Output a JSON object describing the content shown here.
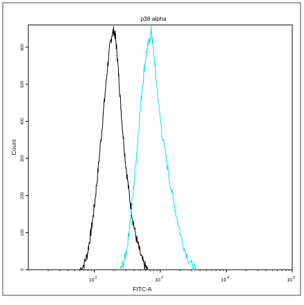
{
  "chart_data": {
    "type": "line",
    "title": "p38 alpha",
    "xlabel": "FITC-A",
    "ylabel": "Count",
    "x_scale": "log",
    "xlim": [
      10,
      100000
    ],
    "ylim": [
      0,
      660
    ],
    "x_ticks": [
      {
        "value": 100,
        "base": "10",
        "exp": "2"
      },
      {
        "value": 1000,
        "base": "10",
        "exp": "3"
      },
      {
        "value": 10000,
        "base": "10",
        "exp": "4"
      },
      {
        "value": 100000,
        "base": "10",
        "exp": "5"
      }
    ],
    "y_ticks": [
      0,
      100,
      200,
      300,
      400,
      500,
      600
    ],
    "grid": false,
    "legend": "none",
    "series": [
      {
        "color": "#000000",
        "x": [
          60,
          70,
          78,
          85,
          92,
          100,
          110,
          120,
          132,
          145,
          158,
          172,
          185,
          198,
          210,
          222,
          235,
          250,
          268,
          290,
          315,
          345,
          380,
          420,
          470,
          520,
          580,
          650
        ],
        "y": [
          0,
          15,
          40,
          80,
          120,
          170,
          240,
          310,
          390,
          470,
          545,
          600,
          635,
          645,
          625,
          580,
          520,
          450,
          380,
          310,
          250,
          190,
          140,
          95,
          60,
          30,
          10,
          0
        ]
      },
      {
        "color": "#00e5ee",
        "x": [
          250,
          280,
          310,
          340,
          380,
          420,
          470,
          520,
          570,
          620,
          680,
          730,
          780,
          850,
          950,
          1080,
          1250,
          1450,
          1700,
          2000,
          2400,
          2900,
          3400
        ],
        "y": [
          0,
          20,
          55,
          110,
          190,
          280,
          380,
          470,
          540,
          590,
          615,
          645,
          600,
          530,
          440,
          360,
          290,
          220,
          160,
          100,
          50,
          15,
          0
        ]
      }
    ]
  }
}
